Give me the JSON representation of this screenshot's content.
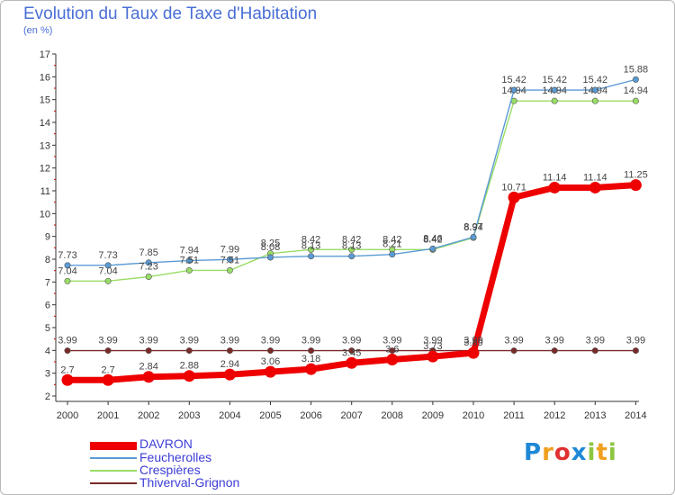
{
  "chart_data": {
    "type": "line",
    "title": "Evolution du Taux de Taxe d'Habitation",
    "subtitle": "(en %)",
    "x": [
      "2000",
      "2001",
      "2002",
      "2003",
      "2004",
      "2005",
      "2006",
      "2007",
      "2008",
      "2009",
      "2010",
      "2011",
      "2012",
      "2013",
      "2014"
    ],
    "ylim": [
      2,
      17
    ],
    "yticks": [
      2,
      3,
      4,
      5,
      6,
      7,
      8,
      9,
      10,
      11,
      12,
      13,
      14,
      15,
      16,
      17
    ],
    "grid": false,
    "legend_position": "bottom-left",
    "series": [
      {
        "name": "DAVRON",
        "color": "#ee0000",
        "values": [
          2.7,
          2.7,
          2.84,
          2.88,
          2.94,
          3.06,
          3.18,
          3.45,
          3.6,
          3.73,
          3.89,
          10.71,
          11.14,
          11.14,
          11.25
        ],
        "labels": [
          "2.7",
          "2.7",
          "2.84",
          "2.88",
          "2.94",
          "3.06",
          "3.18",
          "3.45",
          "3.6",
          "3.73",
          "3.89",
          "10.71",
          "11.14",
          "11.14",
          "11.25"
        ]
      },
      {
        "name": "Feucherolles",
        "color": "#5b9bd5",
        "values": [
          7.73,
          7.73,
          7.85,
          7.94,
          7.99,
          8.08,
          8.13,
          8.13,
          8.21,
          8.46,
          8.97,
          15.42,
          15.42,
          15.42,
          15.88
        ],
        "labels": [
          "7.73",
          "7.73",
          "7.85",
          "7.94",
          "7.99",
          "8.08",
          "8.13",
          "8.13",
          "8.21",
          "8.46",
          "8.97",
          "15.42",
          "15.42",
          "15.42",
          "15.88"
        ]
      },
      {
        "name": "Crespières",
        "color": "#99dd66",
        "values": [
          7.04,
          7.04,
          7.23,
          7.51,
          7.51,
          8.25,
          8.42,
          8.42,
          8.42,
          8.42,
          8.94,
          14.94,
          14.94,
          14.94,
          14.94
        ],
        "labels": [
          "7.04",
          "7.04",
          "7.23",
          "7.51",
          "7.51",
          "8.25",
          "8.42",
          "8.42",
          "8.42",
          "8.42",
          "8.94",
          "14.94",
          "14.94",
          "14.94",
          "14.94"
        ]
      },
      {
        "name": "Thiverval-Grignon",
        "color": "#7a2a2a",
        "values": [
          3.99,
          3.99,
          3.99,
          3.99,
          3.99,
          3.99,
          3.99,
          3.99,
          3.99,
          3.99,
          3.99,
          3.99,
          3.99,
          3.99,
          3.99
        ],
        "labels": [
          "3.99",
          "3.99",
          "3.99",
          "3.99",
          "3.99",
          "3.99",
          "3.99",
          "3.99",
          "3.99",
          "3.99",
          "3.99",
          "3.99",
          "3.99",
          "3.99",
          "3.99"
        ]
      }
    ]
  },
  "logo": {
    "text": "Proxiti",
    "letters": [
      "P",
      "r",
      "o",
      "x",
      "i",
      "t",
      "i"
    ],
    "colors": [
      "#1e88d6",
      "#f0a020",
      "#e03030",
      "#1e88d6",
      "#8cc63f",
      "#f0a020",
      "#8cc63f"
    ]
  }
}
